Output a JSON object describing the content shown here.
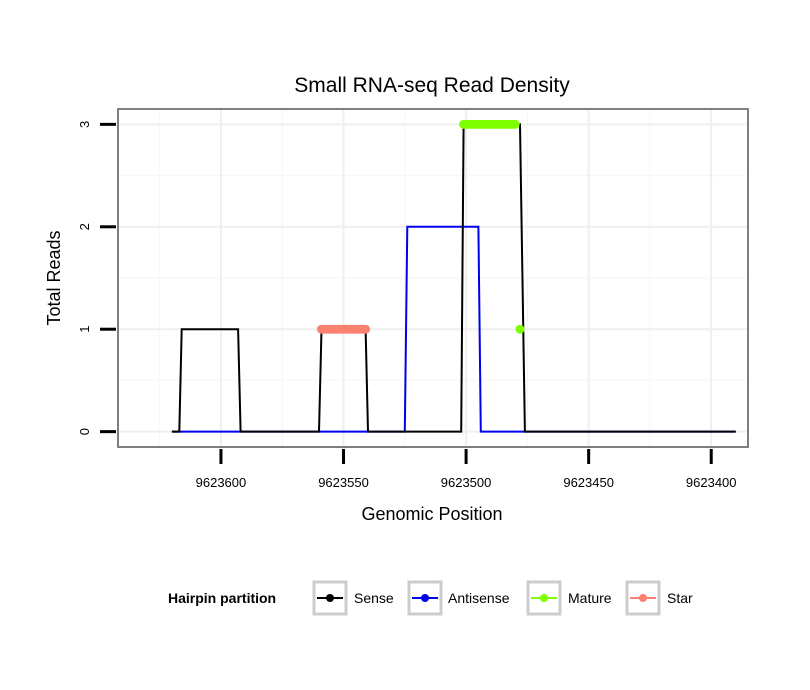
{
  "chart_data": {
    "type": "line",
    "title": "Small RNA-seq Read Density",
    "xlabel": "Genomic Position",
    "ylabel": "Total Reads",
    "xlim": [
      9623642,
      9623385
    ],
    "x_reversed": true,
    "ylim": [
      -0.15,
      3.15
    ],
    "xticks": [
      9623600,
      9623550,
      9623500,
      9623450,
      9623400
    ],
    "xtick_labels": [
      "9623600",
      "9623550",
      "9623500",
      "9623450",
      "9623400"
    ],
    "yticks": [
      0,
      1,
      2,
      3
    ],
    "ytick_labels": [
      "0",
      "1",
      "2",
      "3"
    ],
    "grid": true,
    "legend": {
      "title": "Hairpin partition",
      "position": "bottom",
      "entries": [
        "Sense",
        "Antisense",
        "Mature",
        "Star"
      ]
    },
    "colors": {
      "Sense": "#000000",
      "Antisense": "#0000ee",
      "Mature": "#7fff00",
      "Star": "#fa8072"
    },
    "series": [
      {
        "name": "Antisense",
        "kind": "line",
        "x": [
          9623620,
          9623584,
          9623583,
          9623542,
          9623541,
          9623525,
          9623524,
          9623495,
          9623494,
          9623390
        ],
        "y": [
          0,
          0,
          0,
          0,
          0,
          0,
          2,
          2,
          0,
          0
        ]
      },
      {
        "name": "Sense",
        "kind": "line",
        "x": [
          9623620,
          9623617,
          9623616,
          9623593,
          9623592,
          9623560,
          9623559,
          9623541,
          9623540,
          9623502,
          9623501,
          9623478,
          9623476,
          9623390
        ],
        "y": [
          0,
          0,
          1,
          1,
          0,
          0,
          1,
          1,
          0,
          0,
          3,
          3,
          0,
          0
        ]
      },
      {
        "name": "Star",
        "kind": "points",
        "x_start": 9623559,
        "x_end": 9623541,
        "y": 1
      },
      {
        "name": "Mature",
        "kind": "points",
        "x_start": 9623501,
        "x_end": 9623480,
        "y": 3
      },
      {
        "name": "Mature",
        "kind": "point",
        "x": 9623478,
        "y": 1
      }
    ]
  }
}
